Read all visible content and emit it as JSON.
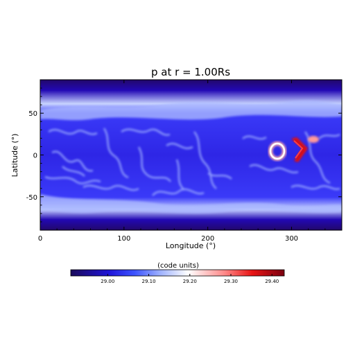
{
  "chart_data": [
    {
      "type": "heatmap",
      "title": "p at r = 1.00Rs",
      "xlabel": "Longitude (°)",
      "ylabel": "Latitude (°)",
      "xlim": [
        0,
        360
      ],
      "ylim": [
        -90,
        90
      ],
      "xticks": [
        0,
        100,
        200,
        300
      ],
      "yticks": [
        50,
        0,
        -50
      ],
      "colors": {
        "low": "#1a0a5a",
        "mid": "#ffffff",
        "high": "#d40000"
      },
      "features": [
        {
          "name": "ring",
          "lon": 283,
          "lat": 5,
          "value": 29.28
        },
        {
          "name": "chevron",
          "lon": 313,
          "lat": 8,
          "value": 29.4
        },
        {
          "name": "blob",
          "lon": 327,
          "lat": 18,
          "value": 29.25
        }
      ]
    },
    {
      "type": "colorbar",
      "label": "(code units)",
      "range": [
        28.91,
        29.43
      ],
      "ticks": [
        "29.00",
        "29.10",
        "29.20",
        "29.30",
        "29.40"
      ]
    }
  ]
}
